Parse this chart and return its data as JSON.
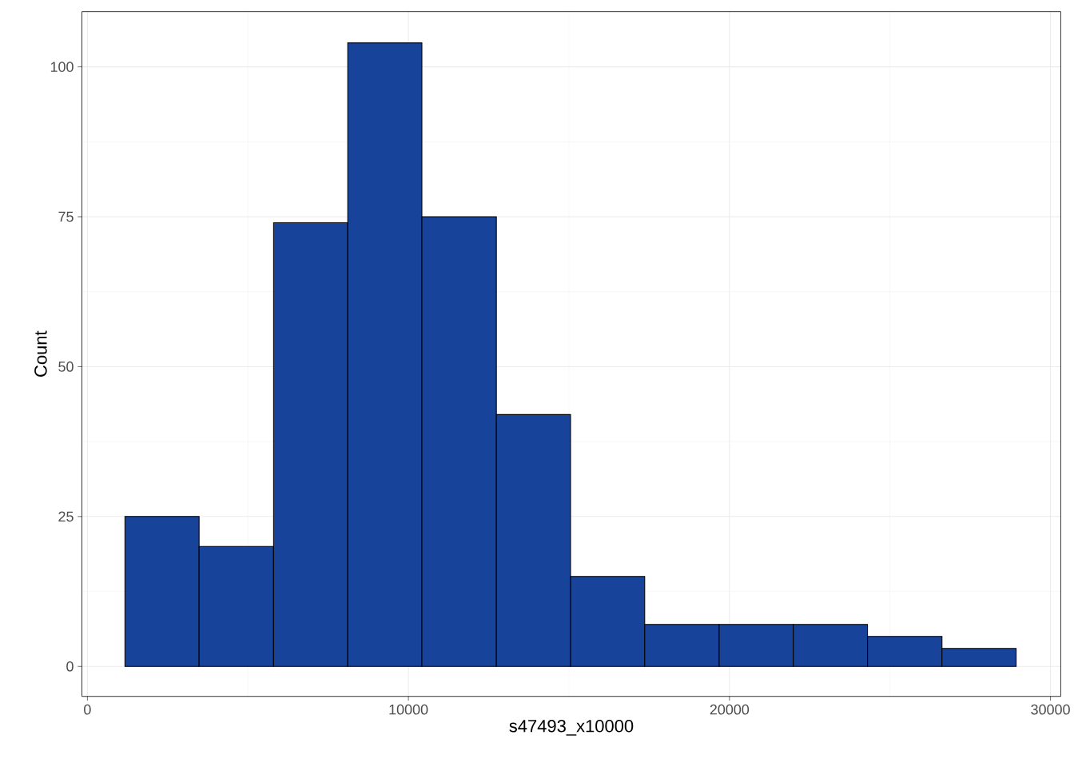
{
  "chart_data": {
    "type": "histogram",
    "xlabel": "s47493_x10000",
    "ylabel": "Count",
    "bins": [
      1170,
      3480,
      5800,
      8110,
      10420,
      12740,
      15050,
      17360,
      19680,
      21990,
      24300,
      26620,
      28930
    ],
    "values": [
      25,
      20,
      74,
      104,
      75,
      42,
      15,
      7,
      7,
      7,
      5,
      3
    ],
    "color": "#18439a",
    "xlim": [
      -170,
      30320
    ],
    "ylim": [
      -5,
      109.2
    ],
    "xticks": [
      0,
      10000,
      20000,
      30000
    ],
    "yticks": [
      0,
      25,
      50,
      75,
      100
    ],
    "grid": true
  }
}
